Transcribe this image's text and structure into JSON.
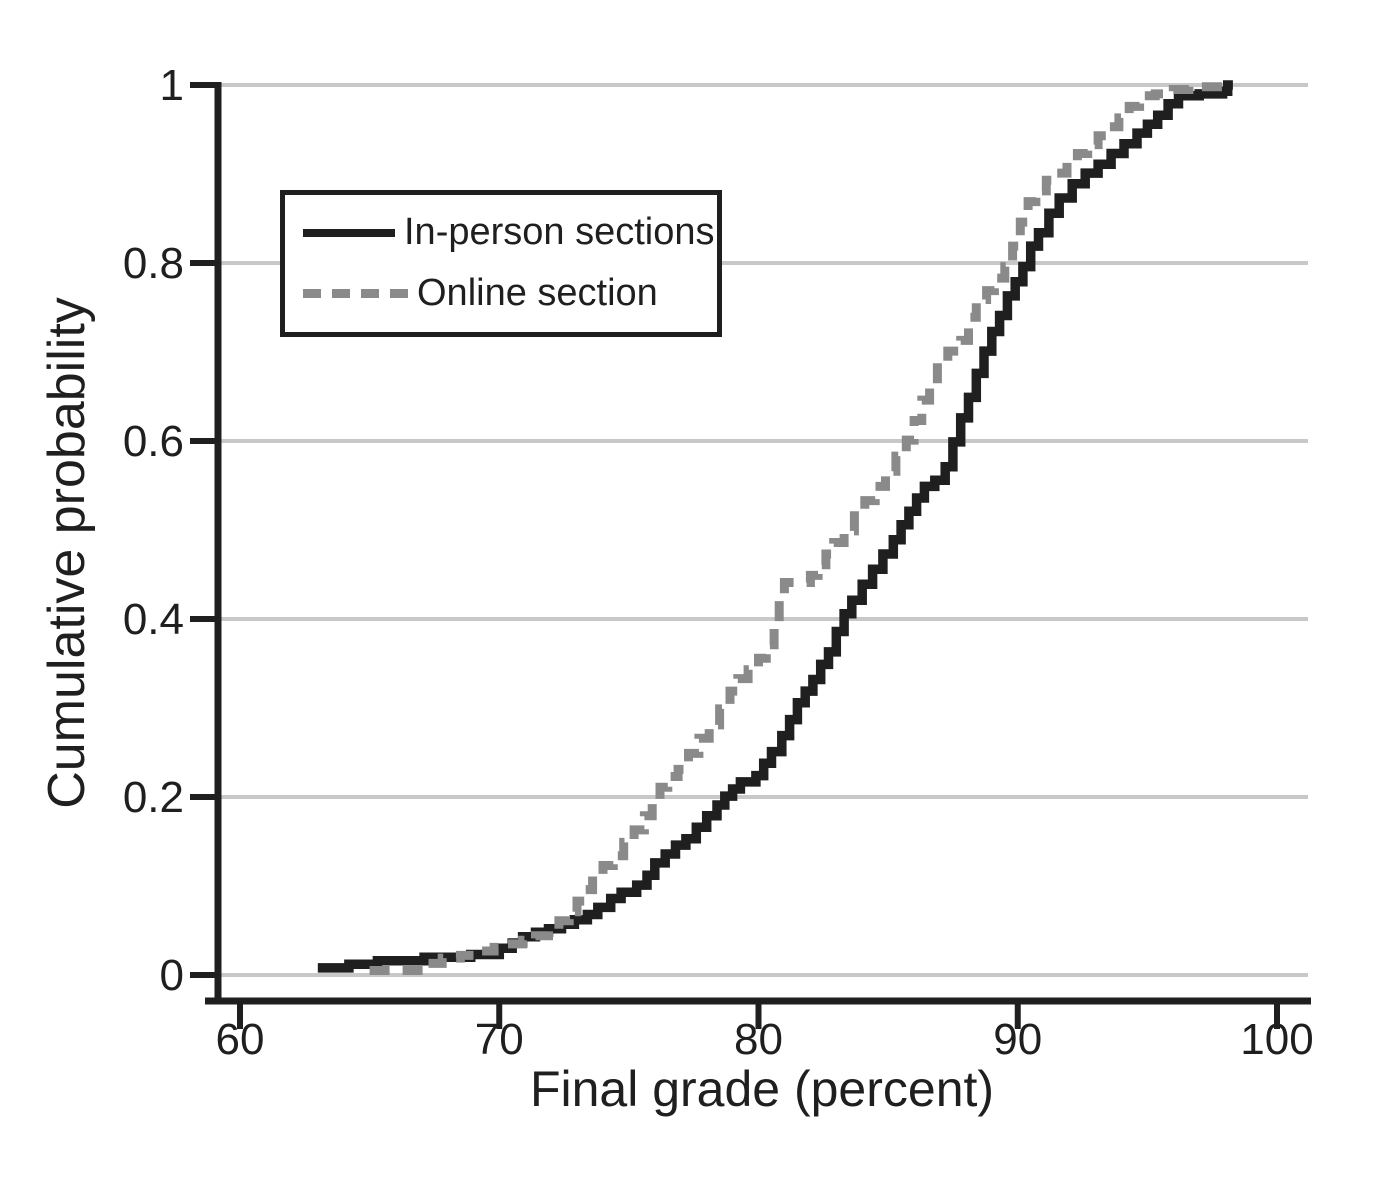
{
  "chart_data": {
    "type": "line",
    "subtype": "empirical-cdf-step",
    "title": "",
    "xlabel": "Final grade (percent)",
    "ylabel": "Cumulative probability",
    "xlim": [
      58.6,
      101.3
    ],
    "ylim": [
      0,
      1
    ],
    "x_ticks": [
      60,
      70,
      80,
      90,
      100
    ],
    "x_tick_labels": [
      "60",
      "70",
      "80",
      "90",
      "100"
    ],
    "y_ticks": [
      0,
      0.2,
      0.4,
      0.6,
      0.8,
      1
    ],
    "y_tick_labels": [
      "0",
      "0.2",
      "0.4",
      "0.6",
      "0.8",
      "1"
    ],
    "grid": "horizontal",
    "style": {
      "ink": "#1f1f1f",
      "grid_color": "#c8c8c8",
      "background": "#ffffff",
      "online_gray": "#8a8a8a"
    },
    "legend": {
      "position": "upper-left",
      "entries": [
        {
          "label": "In-person sections",
          "style": "solid",
          "color": "#1f1f1f"
        },
        {
          "label": "Online section",
          "style": "dashed",
          "color": "#8a8a8a"
        }
      ]
    },
    "series": [
      {
        "name": "In-person sections",
        "color": "#1f1f1f",
        "line_style": "solid",
        "stroke_width": 9.5,
        "points": [
          [
            63.0,
            0.008
          ],
          [
            64.2,
            0.012
          ],
          [
            65.3,
            0.016
          ],
          [
            67.1,
            0.02
          ],
          [
            68.9,
            0.023
          ],
          [
            70.0,
            0.03
          ],
          [
            70.5,
            0.036
          ],
          [
            70.9,
            0.043
          ],
          [
            71.4,
            0.048
          ],
          [
            71.9,
            0.052
          ],
          [
            72.4,
            0.057
          ],
          [
            72.9,
            0.062
          ],
          [
            73.4,
            0.068
          ],
          [
            73.8,
            0.076
          ],
          [
            74.3,
            0.086
          ],
          [
            74.7,
            0.093
          ],
          [
            75.3,
            0.101
          ],
          [
            75.7,
            0.112
          ],
          [
            76.0,
            0.126
          ],
          [
            76.4,
            0.136
          ],
          [
            76.8,
            0.146
          ],
          [
            77.2,
            0.153
          ],
          [
            77.6,
            0.166
          ],
          [
            78.0,
            0.179
          ],
          [
            78.4,
            0.191
          ],
          [
            78.7,
            0.201
          ],
          [
            79.0,
            0.209
          ],
          [
            79.3,
            0.217
          ],
          [
            79.9,
            0.224
          ],
          [
            80.2,
            0.238
          ],
          [
            80.5,
            0.251
          ],
          [
            80.9,
            0.269
          ],
          [
            81.2,
            0.287
          ],
          [
            81.5,
            0.306
          ],
          [
            81.8,
            0.319
          ],
          [
            82.1,
            0.332
          ],
          [
            82.4,
            0.349
          ],
          [
            82.7,
            0.363
          ],
          [
            83.0,
            0.386
          ],
          [
            83.3,
            0.406
          ],
          [
            83.6,
            0.421
          ],
          [
            84.0,
            0.439
          ],
          [
            84.4,
            0.456
          ],
          [
            84.8,
            0.473
          ],
          [
            85.2,
            0.489
          ],
          [
            85.5,
            0.506
          ],
          [
            85.8,
            0.521
          ],
          [
            86.1,
            0.536
          ],
          [
            86.4,
            0.549
          ],
          [
            86.8,
            0.556
          ],
          [
            87.2,
            0.571
          ],
          [
            87.5,
            0.599
          ],
          [
            87.8,
            0.626
          ],
          [
            88.1,
            0.649
          ],
          [
            88.4,
            0.676
          ],
          [
            88.7,
            0.701
          ],
          [
            89.0,
            0.723
          ],
          [
            89.3,
            0.741
          ],
          [
            89.6,
            0.763
          ],
          [
            89.9,
            0.779
          ],
          [
            90.2,
            0.796
          ],
          [
            90.5,
            0.819
          ],
          [
            90.8,
            0.834
          ],
          [
            91.2,
            0.856
          ],
          [
            91.6,
            0.873
          ],
          [
            92.1,
            0.889
          ],
          [
            92.6,
            0.901
          ],
          [
            93.1,
            0.911
          ],
          [
            93.6,
            0.923
          ],
          [
            94.1,
            0.934
          ],
          [
            94.6,
            0.946
          ],
          [
            95.0,
            0.956
          ],
          [
            95.4,
            0.966
          ],
          [
            95.8,
            0.979
          ],
          [
            96.2,
            0.988
          ],
          [
            97.0,
            0.99
          ],
          [
            97.9,
            0.993
          ],
          [
            98.1,
            1.0
          ],
          [
            98.3,
            1.0
          ]
        ]
      },
      {
        "name": "Online section",
        "color": "#8a8a8a",
        "line_style": "dashed",
        "stroke_width": 9,
        "dash": "20 13",
        "points": [
          [
            65.0,
            0.005
          ],
          [
            67.2,
            0.013
          ],
          [
            67.8,
            0.019
          ],
          [
            68.5,
            0.022
          ],
          [
            69.3,
            0.027
          ],
          [
            69.8,
            0.031
          ],
          [
            70.3,
            0.035
          ],
          [
            70.9,
            0.039
          ],
          [
            71.4,
            0.044
          ],
          [
            71.9,
            0.051
          ],
          [
            72.3,
            0.061
          ],
          [
            72.7,
            0.071
          ],
          [
            73.0,
            0.083
          ],
          [
            73.3,
            0.096
          ],
          [
            73.6,
            0.111
          ],
          [
            74.0,
            0.123
          ],
          [
            74.4,
            0.134
          ],
          [
            74.8,
            0.149
          ],
          [
            75.2,
            0.163
          ],
          [
            75.6,
            0.179
          ],
          [
            75.9,
            0.196
          ],
          [
            76.2,
            0.211
          ],
          [
            76.5,
            0.223
          ],
          [
            76.9,
            0.231
          ],
          [
            77.3,
            0.249
          ],
          [
            77.7,
            0.266
          ],
          [
            78.1,
            0.281
          ],
          [
            78.5,
            0.299
          ],
          [
            78.9,
            0.319
          ],
          [
            79.2,
            0.333
          ],
          [
            79.6,
            0.343
          ],
          [
            80.0,
            0.356
          ],
          [
            80.3,
            0.371
          ],
          [
            80.6,
            0.393
          ],
          [
            80.8,
            0.421
          ],
          [
            81.0,
            0.441
          ],
          [
            82.0,
            0.449
          ],
          [
            82.3,
            0.461
          ],
          [
            82.6,
            0.473
          ],
          [
            82.9,
            0.486
          ],
          [
            83.3,
            0.499
          ],
          [
            83.7,
            0.516
          ],
          [
            84.1,
            0.533
          ],
          [
            84.5,
            0.549
          ],
          [
            84.9,
            0.566
          ],
          [
            85.3,
            0.583
          ],
          [
            85.7,
            0.601
          ],
          [
            86.0,
            0.623
          ],
          [
            86.3,
            0.646
          ],
          [
            86.6,
            0.663
          ],
          [
            86.9,
            0.689
          ],
          [
            87.3,
            0.701
          ],
          [
            87.8,
            0.713
          ],
          [
            88.1,
            0.739
          ],
          [
            88.4,
            0.759
          ],
          [
            88.8,
            0.769
          ],
          [
            89.1,
            0.783
          ],
          [
            89.5,
            0.796
          ],
          [
            89.8,
            0.819
          ],
          [
            90.1,
            0.846
          ],
          [
            90.4,
            0.869
          ],
          [
            90.7,
            0.881
          ],
          [
            91.1,
            0.893
          ],
          [
            91.5,
            0.901
          ],
          [
            91.9,
            0.913
          ],
          [
            92.3,
            0.923
          ],
          [
            92.7,
            0.933
          ],
          [
            93.1,
            0.943
          ],
          [
            93.5,
            0.953
          ],
          [
            93.9,
            0.963
          ],
          [
            94.3,
            0.976
          ],
          [
            94.7,
            0.988
          ],
          [
            95.3,
            0.99
          ],
          [
            96.0,
            0.995
          ],
          [
            96.6,
            0.998
          ],
          [
            98.3,
            1.0
          ]
        ]
      }
    ]
  }
}
